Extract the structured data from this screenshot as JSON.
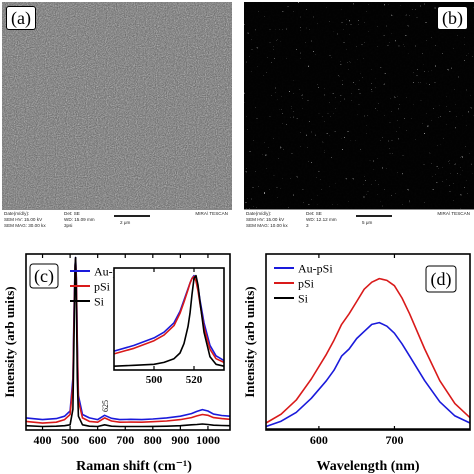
{
  "panels": {
    "a": {
      "label": "(a)",
      "info": {
        "date": "Date(m/d/y):",
        "sem_hv": "SEM HV: 15.00 kV",
        "sem_mag": "SEM MAG: 30.00 kx",
        "det": "Det: SE",
        "wd": "WD: 15.09 mm",
        "sample": "3psi",
        "scale": "2 μm",
        "brand": "MIRA\\ TESCAN"
      }
    },
    "b": {
      "label": "(b)",
      "info": {
        "date": "Date(m/d/y):",
        "sem_hv": "SEM HV: 15.00 kV",
        "sem_mag": "SEM MAG: 10.00 kx",
        "det": "Det: SE",
        "wd": "WD: 12.12 mm",
        "sample": "3",
        "scale": "5 μm",
        "brand": "MIRA\\ TESCAN"
      }
    },
    "c": {
      "label": "(c)",
      "annotation": "625"
    },
    "d": {
      "label": "(d)"
    }
  },
  "colors": {
    "au_psi": "#1a1adb",
    "psi": "#d91a1a",
    "si": "#000000"
  },
  "chart_data": [
    {
      "type": "line",
      "panel": "c",
      "xlabel": "Raman shift (cm⁻¹)",
      "ylabel": "Intensity (arb units)",
      "xlim": [
        340,
        1080
      ],
      "xticks": [
        400,
        500,
        600,
        700,
        800,
        900,
        1000
      ],
      "legend": [
        "Au-pSi",
        "pSi",
        "Si"
      ],
      "legend_position": "top-left",
      "series": [
        {
          "name": "Au-pSi",
          "x": [
            340,
            400,
            450,
            480,
            500,
            510,
            515,
            518,
            520,
            523,
            526,
            530,
            545,
            570,
            600,
            625,
            650,
            680,
            720,
            760,
            800,
            850,
            900,
            940,
            960,
            980,
            1000,
            1020,
            1050,
            1080
          ],
          "y": [
            0.07,
            0.06,
            0.066,
            0.08,
            0.11,
            0.3,
            0.75,
            0.96,
            1.0,
            0.88,
            0.52,
            0.2,
            0.09,
            0.07,
            0.06,
            0.085,
            0.068,
            0.06,
            0.062,
            0.06,
            0.064,
            0.07,
            0.08,
            0.095,
            0.108,
            0.118,
            0.11,
            0.092,
            0.084,
            0.08
          ]
        },
        {
          "name": "pSi",
          "x": [
            340,
            400,
            450,
            480,
            500,
            510,
            515,
            518,
            520,
            523,
            526,
            530,
            545,
            570,
            600,
            625,
            650,
            680,
            720,
            760,
            800,
            850,
            900,
            940,
            960,
            980,
            1000,
            1020,
            1050,
            1080
          ],
          "y": [
            0.05,
            0.04,
            0.045,
            0.06,
            0.09,
            0.26,
            0.7,
            0.95,
            0.99,
            0.86,
            0.48,
            0.17,
            0.07,
            0.05,
            0.045,
            0.07,
            0.052,
            0.045,
            0.046,
            0.045,
            0.048,
            0.052,
            0.06,
            0.072,
            0.082,
            0.09,
            0.085,
            0.072,
            0.066,
            0.062
          ]
        },
        {
          "name": "Si",
          "x": [
            340,
            400,
            450,
            480,
            500,
            510,
            515,
            518,
            520,
            523,
            526,
            530,
            545,
            570,
            600,
            625,
            650,
            680,
            720,
            760,
            800,
            850,
            900,
            940,
            960,
            980,
            1000,
            1020,
            1050,
            1080
          ],
          "y": [
            0.025,
            0.02,
            0.022,
            0.025,
            0.03,
            0.12,
            0.6,
            0.95,
            1.0,
            0.75,
            0.3,
            0.08,
            0.03,
            0.022,
            0.02,
            0.03,
            0.022,
            0.02,
            0.02,
            0.02,
            0.021,
            0.022,
            0.025,
            0.03,
            0.032,
            0.035,
            0.032,
            0.028,
            0.026,
            0.025
          ]
        }
      ]
    },
    {
      "type": "line",
      "panel": "c-inset",
      "xlim": [
        480,
        535
      ],
      "xticks": [
        500,
        520
      ],
      "series": [
        {
          "name": "Au-pSi",
          "x": [
            480,
            490,
            500,
            505,
            510,
            513,
            515,
            517,
            518,
            519,
            520,
            521,
            522,
            523,
            525,
            528,
            531,
            535
          ],
          "y": [
            0.2,
            0.26,
            0.34,
            0.4,
            0.5,
            0.62,
            0.74,
            0.86,
            0.92,
            0.97,
            1.0,
            0.97,
            0.88,
            0.74,
            0.5,
            0.26,
            0.15,
            0.1
          ]
        },
        {
          "name": "pSi",
          "x": [
            480,
            490,
            500,
            505,
            510,
            513,
            515,
            517,
            518,
            519,
            520,
            521,
            522,
            523,
            525,
            528,
            531,
            535
          ],
          "y": [
            0.17,
            0.23,
            0.31,
            0.37,
            0.47,
            0.6,
            0.72,
            0.85,
            0.92,
            0.97,
            0.99,
            0.94,
            0.84,
            0.7,
            0.45,
            0.22,
            0.12,
            0.08
          ]
        },
        {
          "name": "Si",
          "x": [
            480,
            490,
            500,
            505,
            510,
            513,
            515,
            517,
            518,
            519,
            520,
            521,
            522,
            523,
            525,
            528,
            531,
            535
          ],
          "y": [
            0.04,
            0.05,
            0.06,
            0.08,
            0.12,
            0.18,
            0.28,
            0.46,
            0.6,
            0.8,
            0.97,
            1.0,
            0.9,
            0.72,
            0.4,
            0.14,
            0.06,
            0.04
          ]
        }
      ]
    },
    {
      "type": "line",
      "panel": "d",
      "xlabel": "Wavelength (nm)",
      "ylabel": "Intensity (arb units)",
      "xlim": [
        530,
        800
      ],
      "xticks": [
        600,
        700
      ],
      "legend": [
        "Au-pSi",
        "pSi",
        "Si"
      ],
      "legend_position": "top-left",
      "series": [
        {
          "name": "Au-pSi",
          "x": [
            530,
            550,
            570,
            590,
            610,
            620,
            630,
            640,
            650,
            660,
            670,
            680,
            690,
            700,
            710,
            720,
            740,
            760,
            780,
            800
          ],
          "y": [
            0.02,
            0.05,
            0.1,
            0.18,
            0.28,
            0.34,
            0.42,
            0.46,
            0.52,
            0.56,
            0.6,
            0.61,
            0.59,
            0.55,
            0.49,
            0.42,
            0.28,
            0.16,
            0.08,
            0.04
          ]
        },
        {
          "name": "pSi",
          "x": [
            530,
            550,
            570,
            590,
            610,
            620,
            630,
            640,
            650,
            660,
            670,
            680,
            690,
            700,
            710,
            720,
            740,
            760,
            780,
            800
          ],
          "y": [
            0.04,
            0.09,
            0.17,
            0.29,
            0.43,
            0.51,
            0.6,
            0.66,
            0.73,
            0.8,
            0.84,
            0.86,
            0.85,
            0.82,
            0.75,
            0.66,
            0.46,
            0.28,
            0.15,
            0.07
          ]
        },
        {
          "name": "Si",
          "x": [
            530,
            800
          ],
          "y": [
            0.005,
            0.005
          ]
        }
      ]
    }
  ]
}
